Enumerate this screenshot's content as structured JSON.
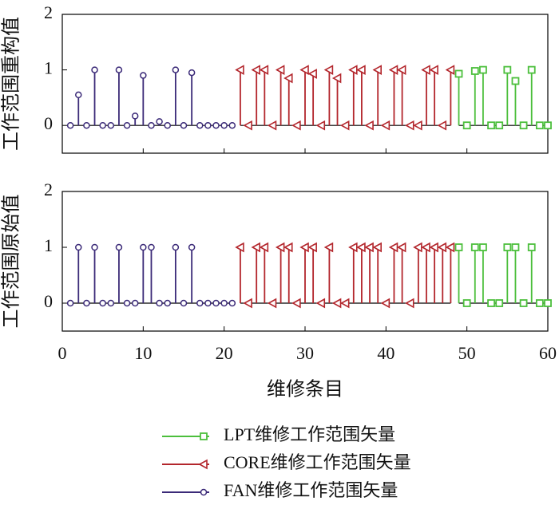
{
  "chart_data": [
    {
      "type": "stem",
      "y_label": "工作范围重构值",
      "xlim": [
        0,
        60
      ],
      "xticks": [
        0,
        10,
        20,
        30,
        40,
        50,
        60
      ],
      "ylim": [
        -0.5,
        2
      ],
      "yticks": [
        0,
        1,
        2
      ],
      "series": [
        {
          "color": "#3b2a78",
          "marker": "circle",
          "x": [
            1,
            2,
            3,
            4,
            5,
            6,
            7,
            8,
            9,
            10,
            11,
            12,
            13,
            14,
            15,
            16,
            17,
            18,
            19,
            20,
            21
          ],
          "values": [
            0,
            0.55,
            0,
            1,
            0,
            0,
            1,
            0,
            0.17,
            0.9,
            0,
            0.07,
            0,
            1,
            0,
            0.95,
            0,
            0,
            0,
            0,
            0
          ]
        },
        {
          "color": "#b3262c",
          "marker": "triangle-left",
          "x": [
            22,
            23,
            24,
            25,
            26,
            27,
            28,
            29,
            30,
            31,
            32,
            33,
            34,
            35,
            36,
            37,
            38,
            39,
            40,
            41,
            42,
            43,
            44,
            45,
            46,
            47,
            48
          ],
          "values": [
            1,
            0,
            1,
            1,
            0,
            1,
            0.85,
            0,
            1,
            0.93,
            0,
            1,
            0.85,
            0,
            1,
            1,
            0,
            1,
            0,
            1,
            1,
            0,
            0,
            1,
            1,
            0,
            1
          ]
        },
        {
          "color": "#4cbf3c",
          "marker": "square",
          "x": [
            49,
            50,
            51,
            52,
            53,
            54,
            55,
            56,
            57,
            58,
            59,
            60
          ],
          "values": [
            0.93,
            0,
            0.98,
            1,
            0,
            0,
            1,
            0.8,
            0,
            1,
            0,
            0
          ]
        }
      ]
    },
    {
      "type": "stem",
      "y_label": "工作范围原始值",
      "x_label": "维修条目",
      "xlim": [
        0,
        60
      ],
      "xticks": [
        0,
        10,
        20,
        30,
        40,
        50,
        60
      ],
      "ylim": [
        -0.5,
        2
      ],
      "yticks": [
        0,
        1,
        2
      ],
      "series": [
        {
          "name": "FAN维修工作范围矢量",
          "color": "#3b2a78",
          "marker": "circle",
          "x": [
            1,
            2,
            3,
            4,
            5,
            6,
            7,
            8,
            9,
            10,
            11,
            12,
            13,
            14,
            15,
            16,
            17,
            18,
            19,
            20,
            21
          ],
          "values": [
            0,
            1,
            0,
            1,
            0,
            0,
            1,
            0,
            0,
            1,
            1,
            0,
            0,
            1,
            0,
            1,
            0,
            0,
            0,
            0,
            0
          ]
        },
        {
          "name": "CORE维修工作范围矢量",
          "color": "#b3262c",
          "marker": "triangle-left",
          "x": [
            22,
            23,
            24,
            25,
            26,
            27,
            28,
            29,
            30,
            31,
            32,
            33,
            34,
            35,
            36,
            37,
            38,
            39,
            40,
            41,
            42,
            43,
            44,
            45,
            46,
            47,
            48
          ],
          "values": [
            1,
            0,
            1,
            1,
            0,
            1,
            1,
            0,
            1,
            1,
            0,
            1,
            0,
            0,
            1,
            1,
            1,
            1,
            0,
            1,
            1,
            0,
            1,
            1,
            1,
            1,
            1
          ]
        },
        {
          "name": "LPT维修工作范围矢量",
          "color": "#4cbf3c",
          "marker": "square",
          "x": [
            49,
            50,
            51,
            52,
            53,
            54,
            55,
            56,
            57,
            58,
            59,
            60
          ],
          "values": [
            1,
            0,
            1,
            1,
            0,
            0,
            1,
            1,
            0,
            1,
            0,
            0
          ]
        }
      ]
    }
  ]
}
